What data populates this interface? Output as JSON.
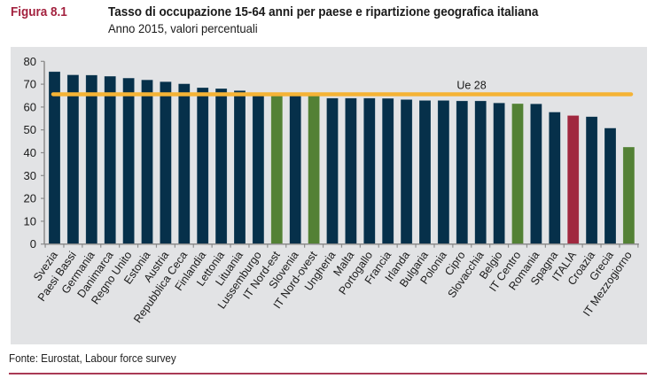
{
  "figure": {
    "number": "Figura 8.1",
    "title": "Tasso di occupazione 15-64 anni per paese e ripartizione geografica italiana",
    "subtitle": "Anno 2015, valori percentuali",
    "source": "Fonte: Eurostat, Labour force survey"
  },
  "colors": {
    "country": "#06304a",
    "italian_region": "#538135",
    "italy": "#a0283f",
    "eu_line": "#f5b335",
    "title_accent": "#a3223f"
  },
  "chart_data": {
    "type": "bar",
    "title": "Tasso di occupazione 15-64 anni per paese e ripartizione geografica italiana",
    "subtitle": "Anno 2015, valori percentuali",
    "xlabel": "",
    "ylabel": "",
    "ylim": [
      0,
      80
    ],
    "yticks": [
      0,
      10,
      20,
      30,
      40,
      50,
      60,
      70,
      80
    ],
    "grid": false,
    "categories": [
      "Svezia",
      "Paesi Bassi",
      "Germania",
      "Danimarca",
      "Regno Unito",
      "Estonia",
      "Austria",
      "Repubblica Ceca",
      "Finlandia",
      "Lettonia",
      "Lituania",
      "Lussemburgo",
      "IT Nord-est",
      "Slovenia",
      "IT Nord-ovest",
      "Ungheria",
      "Malta",
      "Portogallo",
      "Francia",
      "Irlanda",
      "Bulgaria",
      "Polonia",
      "Cipro",
      "Slovacchia",
      "Belgio",
      "IT Centro",
      "Romania",
      "Spagna",
      "ITALIA",
      "Croazia",
      "Grecia",
      "IT Mezzogiorno"
    ],
    "values": [
      75.5,
      74.1,
      74.0,
      73.5,
      72.7,
      71.9,
      71.1,
      70.2,
      68.5,
      68.1,
      67.2,
      65.6,
      65.5,
      65.2,
      65.3,
      63.9,
      63.9,
      63.9,
      63.8,
      63.3,
      62.9,
      62.9,
      62.7,
      62.7,
      61.8,
      61.5,
      61.4,
      57.8,
      56.3,
      55.8,
      50.8,
      42.5
    ],
    "bar_groups": [
      "country",
      "country",
      "country",
      "country",
      "country",
      "country",
      "country",
      "country",
      "country",
      "country",
      "country",
      "country",
      "italian_region",
      "country",
      "italian_region",
      "country",
      "country",
      "country",
      "country",
      "country",
      "country",
      "country",
      "country",
      "country",
      "country",
      "italian_region",
      "country",
      "country",
      "italy",
      "country",
      "country",
      "italian_region"
    ],
    "reference_line": {
      "label": "Ue 28",
      "value": 65.6
    },
    "legend": "none"
  }
}
